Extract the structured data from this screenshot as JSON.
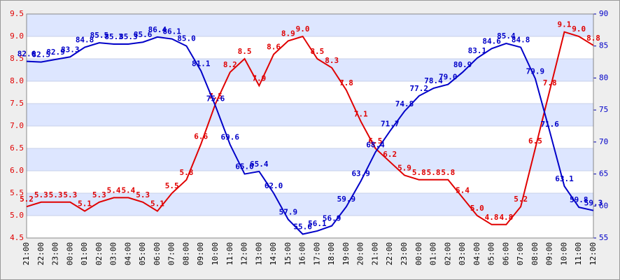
{
  "chart_data": {
    "type": "line",
    "categories": [
      "21:00",
      "22:00",
      "23:00",
      "00:00",
      "01:00",
      "02:00",
      "03:00",
      "04:00",
      "05:00",
      "06:00",
      "07:00",
      "08:00",
      "09:00",
      "10:00",
      "11:00",
      "12:00",
      "13:00",
      "14:00",
      "15:00",
      "16:00",
      "17:00",
      "18:00",
      "19:00",
      "20:00",
      "21:00",
      "22:00",
      "23:00",
      "00:00",
      "01:00",
      "02:00",
      "03:00",
      "04:00",
      "05:00",
      "06:00",
      "07:00",
      "08:00",
      "09:00",
      "10:00",
      "11:00",
      "12:00"
    ],
    "series": [
      {
        "name": "red",
        "color": "#e00000",
        "axis": "y",
        "values": [
          5.2,
          5.3,
          5.3,
          5.3,
          5.1,
          5.3,
          5.4,
          5.4,
          5.3,
          5.1,
          5.5,
          5.8,
          6.6,
          7.5,
          8.2,
          8.5,
          7.9,
          8.6,
          8.9,
          9.0,
          8.5,
          8.3,
          7.8,
          7.1,
          6.5,
          6.2,
          5.9,
          5.8,
          5.8,
          5.8,
          5.4,
          5.0,
          4.8,
          4.8,
          5.2,
          6.5,
          7.8,
          9.1,
          9.0,
          8.8
        ],
        "value_labels": [
          "5.2",
          "5.3",
          "5.3",
          "5.3",
          "5.1",
          "5.3",
          "5.4",
          "5.4",
          "5.3",
          "5.1",
          "5.5",
          "5.8",
          "6.6",
          "7.5",
          "8.2",
          "8.5",
          "7.9",
          "8.6",
          "8.9",
          "9.0",
          "8.5",
          "8.3",
          "7.8",
          "7.1",
          "6.5",
          "6.2",
          "5.9",
          "5.8",
          "5.8",
          "5.8",
          "5.4",
          "5.0",
          "4.8",
          "4.8",
          "5.2",
          "6.5",
          "7.8",
          "9.1",
          "9.0",
          "8.8"
        ]
      },
      {
        "name": "blue",
        "color": "#0000c8",
        "axis": "y2",
        "values": [
          82.6,
          82.5,
          82.9,
          83.3,
          84.8,
          85.5,
          85.3,
          85.3,
          85.6,
          86.4,
          86.1,
          85.0,
          81.1,
          75.6,
          69.6,
          65.0,
          65.4,
          62.0,
          57.9,
          55.6,
          56.1,
          56.9,
          59.9,
          63.9,
          68.4,
          71.7,
          74.8,
          77.2,
          78.4,
          79.0,
          80.9,
          83.1,
          84.6,
          85.4,
          84.8,
          79.9,
          71.6,
          63.1,
          59.8,
          59.3
        ],
        "value_labels": [
          "82.6",
          "82.5",
          "82.9",
          "83.3",
          "84.8",
          "85.5",
          "85.3",
          "85.3",
          "85.6",
          "86.4",
          "86.1",
          "85.0",
          "81.1",
          "75.6",
          "69.6",
          "65.0",
          "65.4",
          "62.0",
          "57.9",
          "55.6",
          "56.1",
          "56.9",
          "59.9",
          "63.9",
          "68.4",
          "71.7",
          "74.8",
          "77.2",
          "78.4",
          "79.0",
          "80.9",
          "83.1",
          "84.6",
          "85.4",
          "84.8",
          "79.9",
          "71.6",
          "63.1",
          "59.8",
          "59.3"
        ]
      }
    ],
    "ylim": [
      4.5,
      9.5
    ],
    "yticks": [
      4.5,
      {
        "value": 5,
        "label": "5.0"
      },
      5.5,
      {
        "value": 6,
        "label": "6.0"
      },
      6.5,
      {
        "value": 7,
        "label": "7.0"
      },
      7.5,
      {
        "value": 8,
        "label": "8.0"
      },
      8.5,
      {
        "value": 9,
        "label": "9.0"
      },
      9.5
    ],
    "y2lim": [
      55,
      90
    ],
    "y2ticks": [
      55,
      60,
      65,
      70,
      75,
      80,
      85,
      90
    ],
    "grid": true
  }
}
